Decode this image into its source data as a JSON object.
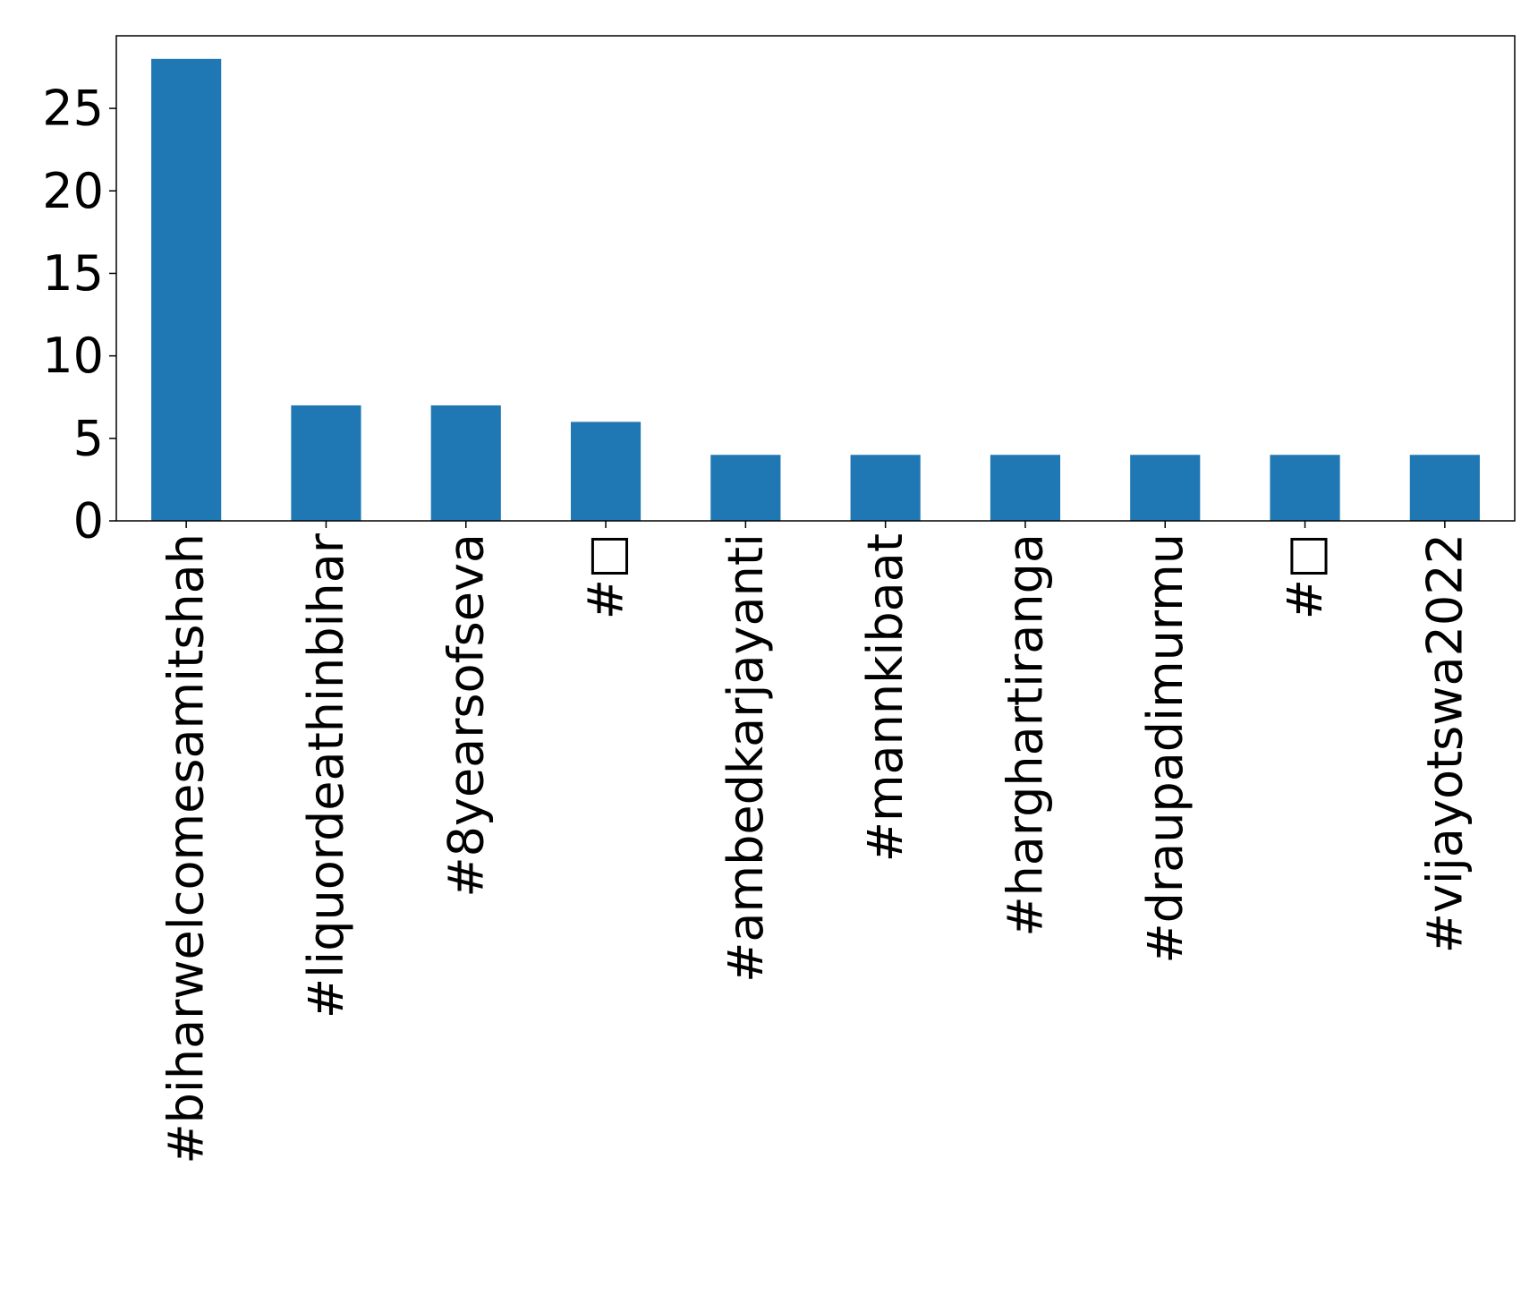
{
  "chart_data": {
    "type": "bar",
    "title": "",
    "xlabel": "",
    "ylabel": "",
    "categories": [
      "#biharwelcomesamitshah",
      "#liquordeathinbihar",
      "#8yearsofseva",
      "#□",
      "#ambedkarjayanti",
      "#mannkibaat",
      "#harghartiranga",
      "#draupadimurmu",
      "#□",
      "#vijayotswa2022"
    ],
    "values": [
      28,
      7,
      7,
      6,
      4,
      4,
      4,
      4,
      4,
      4
    ],
    "ylim": [
      0,
      29.4
    ],
    "yticks": [
      0,
      5,
      10,
      15,
      20,
      25
    ],
    "grid": false,
    "legend": "none",
    "bar_color": "#1f77b4"
  }
}
